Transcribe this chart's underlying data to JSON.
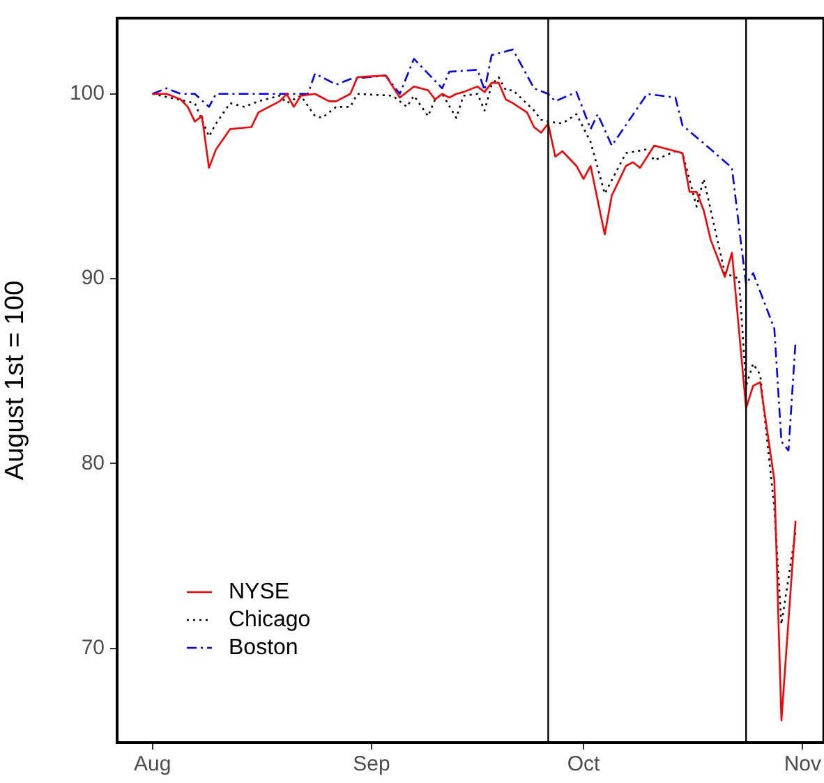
{
  "chart_data": {
    "type": "line",
    "ylabel": "August 1st = 100",
    "xlim": [
      "--07-27",
      "--11-04"
    ],
    "xticks": [
      {
        "value": "--08-01",
        "label": "Aug"
      },
      {
        "value": "--09-01",
        "label": "Sep"
      },
      {
        "value": "--10-01",
        "label": "Oct"
      },
      {
        "value": "--11-01",
        "label": "Nov"
      }
    ],
    "ylim": [
      64.9,
      104.1
    ],
    "yticks": [
      70,
      80,
      90,
      100
    ],
    "grid": false,
    "legend": "bottom left",
    "marker": "none",
    "ref_lines": [
      {
        "axis": "x",
        "value": "--09-26",
        "color": "#000000"
      },
      {
        "axis": "x",
        "value": "--10-24",
        "color": "#000000"
      }
    ],
    "series": [
      {
        "name": "NYSE",
        "color": "#ff0000",
        "line_style": "solid",
        "x": [
          "--08-01",
          "--08-03",
          "--08-05",
          "--08-06",
          "--08-07",
          "--08-08",
          "--08-09",
          "--08-10",
          "--08-12",
          "--08-15",
          "--08-16",
          "--08-19",
          "--08-20",
          "--08-21",
          "--08-22",
          "--08-24",
          "--08-26",
          "--08-27",
          "--08-29",
          "--08-30",
          "--09-03",
          "--09-05",
          "--09-07",
          "--09-09",
          "--09-10",
          "--09-11",
          "--09-12",
          "--09-13",
          "--09-14",
          "--09-16",
          "--09-17",
          "--09-18",
          "--09-19",
          "--09-20",
          "--09-21",
          "--09-23",
          "--09-24",
          "--09-25",
          "--09-26",
          "--09-27",
          "--09-28",
          "--09-30",
          "--10-01",
          "--10-02",
          "--10-04",
          "--10-05",
          "--10-07",
          "--10-08",
          "--10-09",
          "--10-11",
          "--10-15",
          "--10-16",
          "--10-17",
          "--10-18",
          "--10-19",
          "--10-21",
          "--10-22",
          "--10-24",
          "--10-25",
          "--10-26",
          "--10-28",
          "--10-29",
          "--10-31"
        ],
        "values": [
          100,
          100,
          99.7,
          99.3,
          98.5,
          98.8,
          96,
          97,
          98.1,
          98.2,
          99,
          99.6,
          100,
          99.3,
          99.9,
          100,
          99.6,
          99.6,
          100,
          100.9,
          101,
          99.8,
          100.4,
          100.2,
          99.7,
          100,
          99.8,
          100,
          100.1,
          100.4,
          100.1,
          100.6,
          100.6,
          99.7,
          99.5,
          99,
          98.2,
          97.9,
          98.4,
          96.6,
          96.9,
          96.1,
          95.4,
          96.1,
          92.4,
          94.5,
          96.1,
          96.3,
          96,
          97.2,
          96.8,
          94.7,
          94.7,
          93.7,
          92.1,
          90.1,
          91.4,
          83,
          84.2,
          84.4,
          79.1,
          66.1,
          76.9
        ]
      },
      {
        "name": "Chicago",
        "color": "#000000",
        "line_style": "dotted",
        "x": [
          "--08-01",
          "--08-07",
          "--08-09",
          "--08-10",
          "--08-12",
          "--08-14",
          "--08-16",
          "--08-19",
          "--08-20",
          "--08-22",
          "--08-24",
          "--08-25",
          "--08-27",
          "--08-29",
          "--08-30",
          "--09-04",
          "--09-06",
          "--09-07",
          "--09-09",
          "--09-10",
          "--09-11",
          "--09-13",
          "--09-14",
          "--09-16",
          "--09-17",
          "--09-18",
          "--09-19",
          "--09-20",
          "--09-21",
          "--09-24",
          "--09-25",
          "--09-26",
          "--09-28",
          "--09-30",
          "--10-02",
          "--10-04",
          "--10-07",
          "--10-10",
          "--10-11",
          "--10-14",
          "--10-15",
          "--10-17",
          "--10-18",
          "--10-21",
          "--10-23",
          "--10-24",
          "--10-25",
          "--10-26",
          "--10-28",
          "--10-29",
          "--10-31"
        ],
        "values": [
          100,
          99.5,
          97.7,
          98.4,
          99.5,
          99.3,
          99.6,
          99.9,
          99.5,
          99.9,
          98.8,
          98.7,
          99.3,
          99.3,
          100,
          99.9,
          99.3,
          99.9,
          98.8,
          99.7,
          100,
          98.7,
          99.9,
          100,
          99.1,
          100.5,
          100.9,
          100.2,
          100.2,
          99.1,
          98.6,
          98.5,
          98.4,
          98.9,
          97.4,
          94.6,
          96.8,
          97,
          96.4,
          96.9,
          96.8,
          93.9,
          95.4,
          90.3,
          90,
          84.2,
          85.4,
          84.8,
          77.6,
          71.3,
          76.3
        ]
      },
      {
        "name": "Boston",
        "color": "#0000ff",
        "line_style": "dashed",
        "x": [
          "--08-01",
          "--08-03",
          "--08-05",
          "--08-07",
          "--08-09",
          "--08-10",
          "--08-23",
          "--08-24",
          "--08-27",
          "--08-29",
          "--09-03",
          "--09-05",
          "--09-07",
          "--09-11",
          "--09-12",
          "--09-16",
          "--09-17",
          "--09-18",
          "--09-21",
          "--09-24",
          "--09-26",
          "--09-27",
          "--09-30",
          "--10-02",
          "--10-03",
          "--10-05",
          "--10-10",
          "--10-14",
          "--10-15",
          "--10-19",
          "--10-22",
          "--10-23",
          "--10-24",
          "--10-25",
          "--10-28",
          "--10-29",
          "--10-30",
          "--10-31"
        ],
        "values": [
          100,
          100.3,
          100,
          100,
          99.3,
          100,
          100,
          101.1,
          100.5,
          100.8,
          101,
          100,
          101.9,
          100.3,
          101.2,
          101.3,
          100.2,
          102.1,
          102.4,
          100.3,
          100,
          99.6,
          100.1,
          98.1,
          98.9,
          97.2,
          100,
          99.8,
          98.3,
          97,
          96,
          92.8,
          89.7,
          90.3,
          87.3,
          81.2,
          80.7,
          86.6
        ]
      }
    ]
  }
}
